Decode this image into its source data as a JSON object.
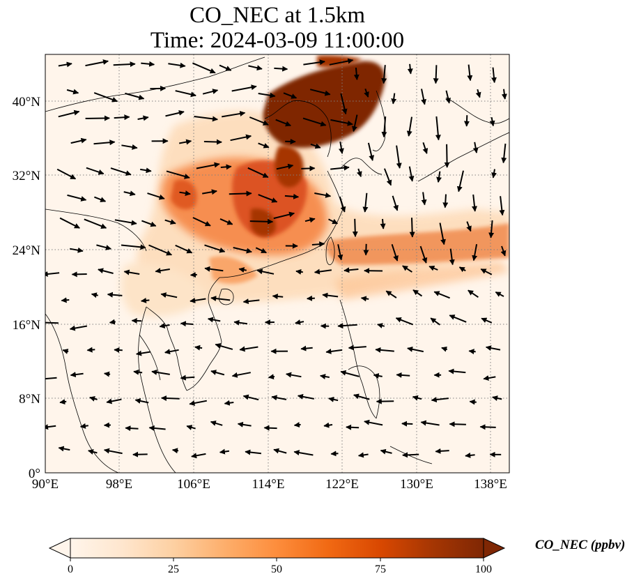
{
  "title": {
    "line1": "CO_NEC at 1.5km",
    "line2": "Time: 2024-03-09 11:00:00"
  },
  "axes": {
    "lon_ticks": [
      "90°E",
      "98°E",
      "106°E",
      "114°E",
      "122°E",
      "130°E",
      "138°E"
    ],
    "lat_ticks": [
      "0°",
      "8°N",
      "16°N",
      "24°N",
      "32°N",
      "40°N"
    ],
    "lon_range": [
      90,
      140
    ],
    "lat_range": [
      0,
      45
    ],
    "grid": "dotted"
  },
  "colorbar": {
    "label": "CO_NEC (ppbv)",
    "ticks": [
      "0",
      "25",
      "50",
      "75",
      "100"
    ],
    "range": [
      0,
      100
    ],
    "extend": "both",
    "colormap": [
      "#fff5eb",
      "#fee6ce",
      "#fdd0a2",
      "#fdae6b",
      "#fd8d3c",
      "#f16913",
      "#d94801",
      "#a63603",
      "#7f2704"
    ]
  },
  "colors": {
    "background": "#fff5eb",
    "coastline": "#000000",
    "gridline": "#808080",
    "vector": "#000000"
  }
}
